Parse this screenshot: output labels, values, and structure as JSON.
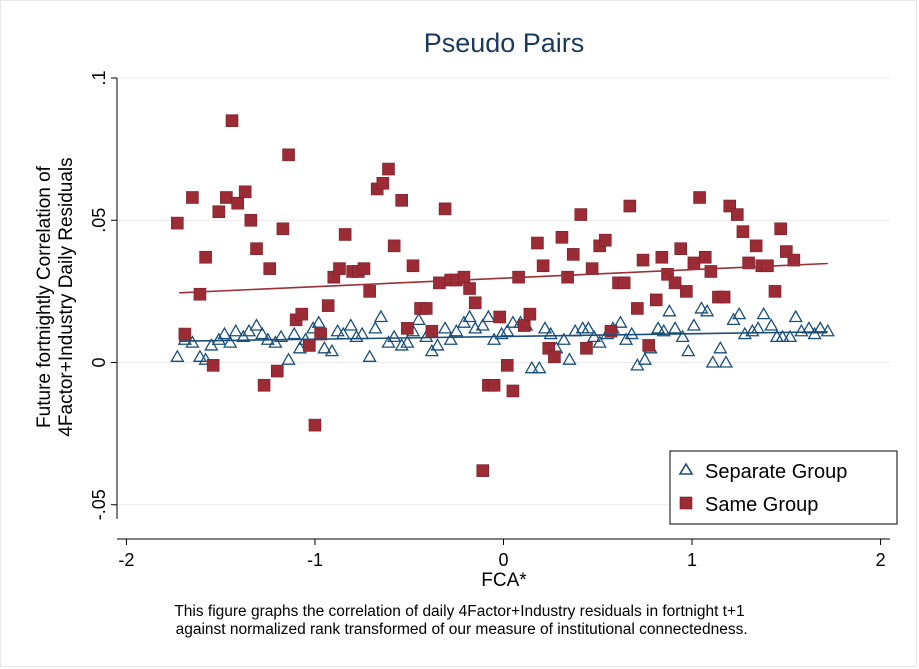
{
  "chart_data": {
    "type": "scatter",
    "title": "Pseudo Pairs",
    "xlabel": "FCA*",
    "ylabel": [
      "Future fortnightly Correlation of",
      "4Factor+Industry Daily Residuals"
    ],
    "xlim": [
      -2.05,
      2.05
    ],
    "ylim": [
      -0.055,
      0.1
    ],
    "xticks": [
      -2,
      -1,
      0,
      1,
      2
    ],
    "xtick_labels": [
      "-2",
      "-1",
      "0",
      "1",
      "2"
    ],
    "yticks": [
      -0.05,
      0,
      0.05,
      0.1
    ],
    "ytick_labels": [
      "-.05",
      "0",
      ".05",
      ".1"
    ],
    "grid": "y-major",
    "legend_position": "bottom-right",
    "series": [
      {
        "name": "Separate Group",
        "marker": "hollow-triangle",
        "color": "#1a4f7a",
        "fit": {
          "x": [
            -1.72,
            1.72
          ],
          "y": [
            0.0075,
            0.0108
          ]
        },
        "points": [
          [
            -1.73,
            0.002
          ],
          [
            -1.69,
            0.008
          ],
          [
            -1.65,
            0.007
          ],
          [
            -1.61,
            0.002
          ],
          [
            -1.58,
            0.001
          ],
          [
            -1.55,
            0.006
          ],
          [
            -1.51,
            0.008
          ],
          [
            -1.48,
            0.01
          ],
          [
            -1.45,
            0.007
          ],
          [
            -1.42,
            0.011
          ],
          [
            -1.38,
            0.009
          ],
          [
            -1.35,
            0.011
          ],
          [
            -1.31,
            0.013
          ],
          [
            -1.28,
            0.01
          ],
          [
            -1.25,
            0.008
          ],
          [
            -1.21,
            0.007
          ],
          [
            -1.18,
            0.009
          ],
          [
            -1.14,
            0.001
          ],
          [
            -1.11,
            0.01
          ],
          [
            -1.08,
            0.005
          ],
          [
            -1.05,
            0.008
          ],
          [
            -1.01,
            0.012
          ],
          [
            -0.98,
            0.014
          ],
          [
            -0.95,
            0.005
          ],
          [
            -0.91,
            0.004
          ],
          [
            -0.88,
            0.011
          ],
          [
            -0.85,
            0.01
          ],
          [
            -0.81,
            0.013
          ],
          [
            -0.78,
            0.009
          ],
          [
            -0.75,
            0.01
          ],
          [
            -0.71,
            0.002
          ],
          [
            -0.68,
            0.012
          ],
          [
            -0.65,
            0.016
          ],
          [
            -0.61,
            0.007
          ],
          [
            -0.58,
            0.009
          ],
          [
            -0.54,
            0.006
          ],
          [
            -0.51,
            0.007
          ],
          [
            -0.48,
            0.011
          ],
          [
            -0.45,
            0.015
          ],
          [
            -0.41,
            0.009
          ],
          [
            -0.38,
            0.004
          ],
          [
            -0.35,
            0.006
          ],
          [
            -0.31,
            0.012
          ],
          [
            -0.28,
            0.008
          ],
          [
            -0.25,
            0.011
          ],
          [
            -0.21,
            0.014
          ],
          [
            -0.18,
            0.016
          ],
          [
            -0.15,
            0.012
          ],
          [
            -0.11,
            0.013
          ],
          [
            -0.08,
            0.016
          ],
          [
            -0.05,
            0.008
          ],
          [
            -0.01,
            0.01
          ],
          [
            0.02,
            0.011
          ],
          [
            0.05,
            0.014
          ],
          [
            0.09,
            0.014
          ],
          [
            0.12,
            0.013
          ],
          [
            0.15,
            -0.002
          ],
          [
            0.19,
            -0.002
          ],
          [
            0.22,
            0.012
          ],
          [
            0.25,
            0.01
          ],
          [
            0.28,
            0.005
          ],
          [
            0.32,
            0.008
          ],
          [
            0.35,
            0.001
          ],
          [
            0.38,
            0.011
          ],
          [
            0.42,
            0.012
          ],
          [
            0.45,
            0.012
          ],
          [
            0.48,
            0.009
          ],
          [
            0.51,
            0.007
          ],
          [
            0.55,
            0.01
          ],
          [
            0.58,
            0.012
          ],
          [
            0.62,
            0.014
          ],
          [
            0.65,
            0.008
          ],
          [
            0.68,
            0.01
          ],
          [
            0.71,
            -0.001
          ],
          [
            0.75,
            0.001
          ],
          [
            0.78,
            0.005
          ],
          [
            0.82,
            0.012
          ],
          [
            0.85,
            0.011
          ],
          [
            0.88,
            0.018
          ],
          [
            0.91,
            0.012
          ],
          [
            0.95,
            0.009
          ],
          [
            0.98,
            0.004
          ],
          [
            1.01,
            0.013
          ],
          [
            1.05,
            0.019
          ],
          [
            1.08,
            0.018
          ],
          [
            1.11,
            0.0
          ],
          [
            1.15,
            0.005
          ],
          [
            1.18,
            0.0
          ],
          [
            1.22,
            0.015
          ],
          [
            1.25,
            0.017
          ],
          [
            1.28,
            0.01
          ],
          [
            1.32,
            0.011
          ],
          [
            1.35,
            0.012
          ],
          [
            1.38,
            0.017
          ],
          [
            1.42,
            0.013
          ],
          [
            1.45,
            0.009
          ],
          [
            1.48,
            0.009
          ],
          [
            1.52,
            0.009
          ],
          [
            1.55,
            0.016
          ],
          [
            1.58,
            0.011
          ],
          [
            1.62,
            0.012
          ],
          [
            1.65,
            0.01
          ],
          [
            1.68,
            0.012
          ],
          [
            1.72,
            0.011
          ]
        ]
      },
      {
        "name": "Same Group",
        "marker": "filled-square",
        "color": "#9b2b35",
        "fit": {
          "x": [
            -1.72,
            1.72
          ],
          "y": [
            0.0245,
            0.0348
          ]
        },
        "points": [
          [
            -1.73,
            0.049
          ],
          [
            -1.69,
            0.01
          ],
          [
            -1.65,
            0.058
          ],
          [
            -1.61,
            0.024
          ],
          [
            -1.58,
            0.037
          ],
          [
            -1.54,
            -0.001
          ],
          [
            -1.51,
            0.053
          ],
          [
            -1.47,
            0.058
          ],
          [
            -1.44,
            0.085
          ],
          [
            -1.41,
            0.056
          ],
          [
            -1.37,
            0.06
          ],
          [
            -1.34,
            0.05
          ],
          [
            -1.31,
            0.04
          ],
          [
            -1.27,
            -0.008
          ],
          [
            -1.24,
            0.033
          ],
          [
            -1.2,
            -0.003
          ],
          [
            -1.17,
            0.047
          ],
          [
            -1.14,
            0.073
          ],
          [
            -1.1,
            0.015
          ],
          [
            -1.07,
            0.017
          ],
          [
            -1.03,
            0.006
          ],
          [
            -1.0,
            -0.022
          ],
          [
            -0.97,
            0.01
          ],
          [
            -0.93,
            0.02
          ],
          [
            -0.9,
            0.03
          ],
          [
            -0.87,
            0.033
          ],
          [
            -0.84,
            0.045
          ],
          [
            -0.8,
            0.032
          ],
          [
            -0.77,
            0.032
          ],
          [
            -0.74,
            0.033
          ],
          [
            -0.71,
            0.025
          ],
          [
            -0.67,
            0.061
          ],
          [
            -0.64,
            0.063
          ],
          [
            -0.61,
            0.068
          ],
          [
            -0.58,
            0.041
          ],
          [
            -0.54,
            0.057
          ],
          [
            -0.51,
            0.012
          ],
          [
            -0.48,
            0.034
          ],
          [
            -0.44,
            0.019
          ],
          [
            -0.41,
            0.019
          ],
          [
            -0.38,
            0.011
          ],
          [
            -0.34,
            0.028
          ],
          [
            -0.31,
            0.054
          ],
          [
            -0.28,
            0.029
          ],
          [
            -0.25,
            0.029
          ],
          [
            -0.21,
            0.03
          ],
          [
            -0.18,
            0.026
          ],
          [
            -0.15,
            0.021
          ],
          [
            -0.11,
            -0.038
          ],
          [
            -0.08,
            -0.008
          ],
          [
            -0.05,
            -0.008
          ],
          [
            -0.02,
            0.016
          ],
          [
            0.02,
            -0.001
          ],
          [
            0.05,
            -0.01
          ],
          [
            0.08,
            0.03
          ],
          [
            0.11,
            0.013
          ],
          [
            0.14,
            0.017
          ],
          [
            0.18,
            0.042
          ],
          [
            0.21,
            0.034
          ],
          [
            0.24,
            0.005
          ],
          [
            0.27,
            0.002
          ],
          [
            0.31,
            0.044
          ],
          [
            0.34,
            0.03
          ],
          [
            0.37,
            0.038
          ],
          [
            0.41,
            0.052
          ],
          [
            0.44,
            0.005
          ],
          [
            0.47,
            0.033
          ],
          [
            0.51,
            0.041
          ],
          [
            0.54,
            0.043
          ],
          [
            0.57,
            0.011
          ],
          [
            0.61,
            0.028
          ],
          [
            0.64,
            0.028
          ],
          [
            0.67,
            0.055
          ],
          [
            0.71,
            0.019
          ],
          [
            0.74,
            0.036
          ],
          [
            0.77,
            0.006
          ],
          [
            0.81,
            0.022
          ],
          [
            0.84,
            0.037
          ],
          [
            0.87,
            0.031
          ],
          [
            0.91,
            0.028
          ],
          [
            0.94,
            0.04
          ],
          [
            0.97,
            0.025
          ],
          [
            1.01,
            0.035
          ],
          [
            1.04,
            0.058
          ],
          [
            1.07,
            0.037
          ],
          [
            1.1,
            0.032
          ],
          [
            1.14,
            0.023
          ],
          [
            1.17,
            0.023
          ],
          [
            1.2,
            0.055
          ],
          [
            1.24,
            0.052
          ],
          [
            1.27,
            0.046
          ],
          [
            1.3,
            0.035
          ],
          [
            1.34,
            0.041
          ],
          [
            1.37,
            0.034
          ],
          [
            1.4,
            0.034
          ],
          [
            1.44,
            0.025
          ],
          [
            1.47,
            0.047
          ],
          [
            1.5,
            0.039
          ],
          [
            1.54,
            0.036
          ]
        ]
      }
    ],
    "caption": [
      "This figure graphs the correlation of daily 4Factor+Industry residuals in fortnight t+1",
      " against normalized rank transformed of our measure of institutional connectedness."
    ]
  }
}
